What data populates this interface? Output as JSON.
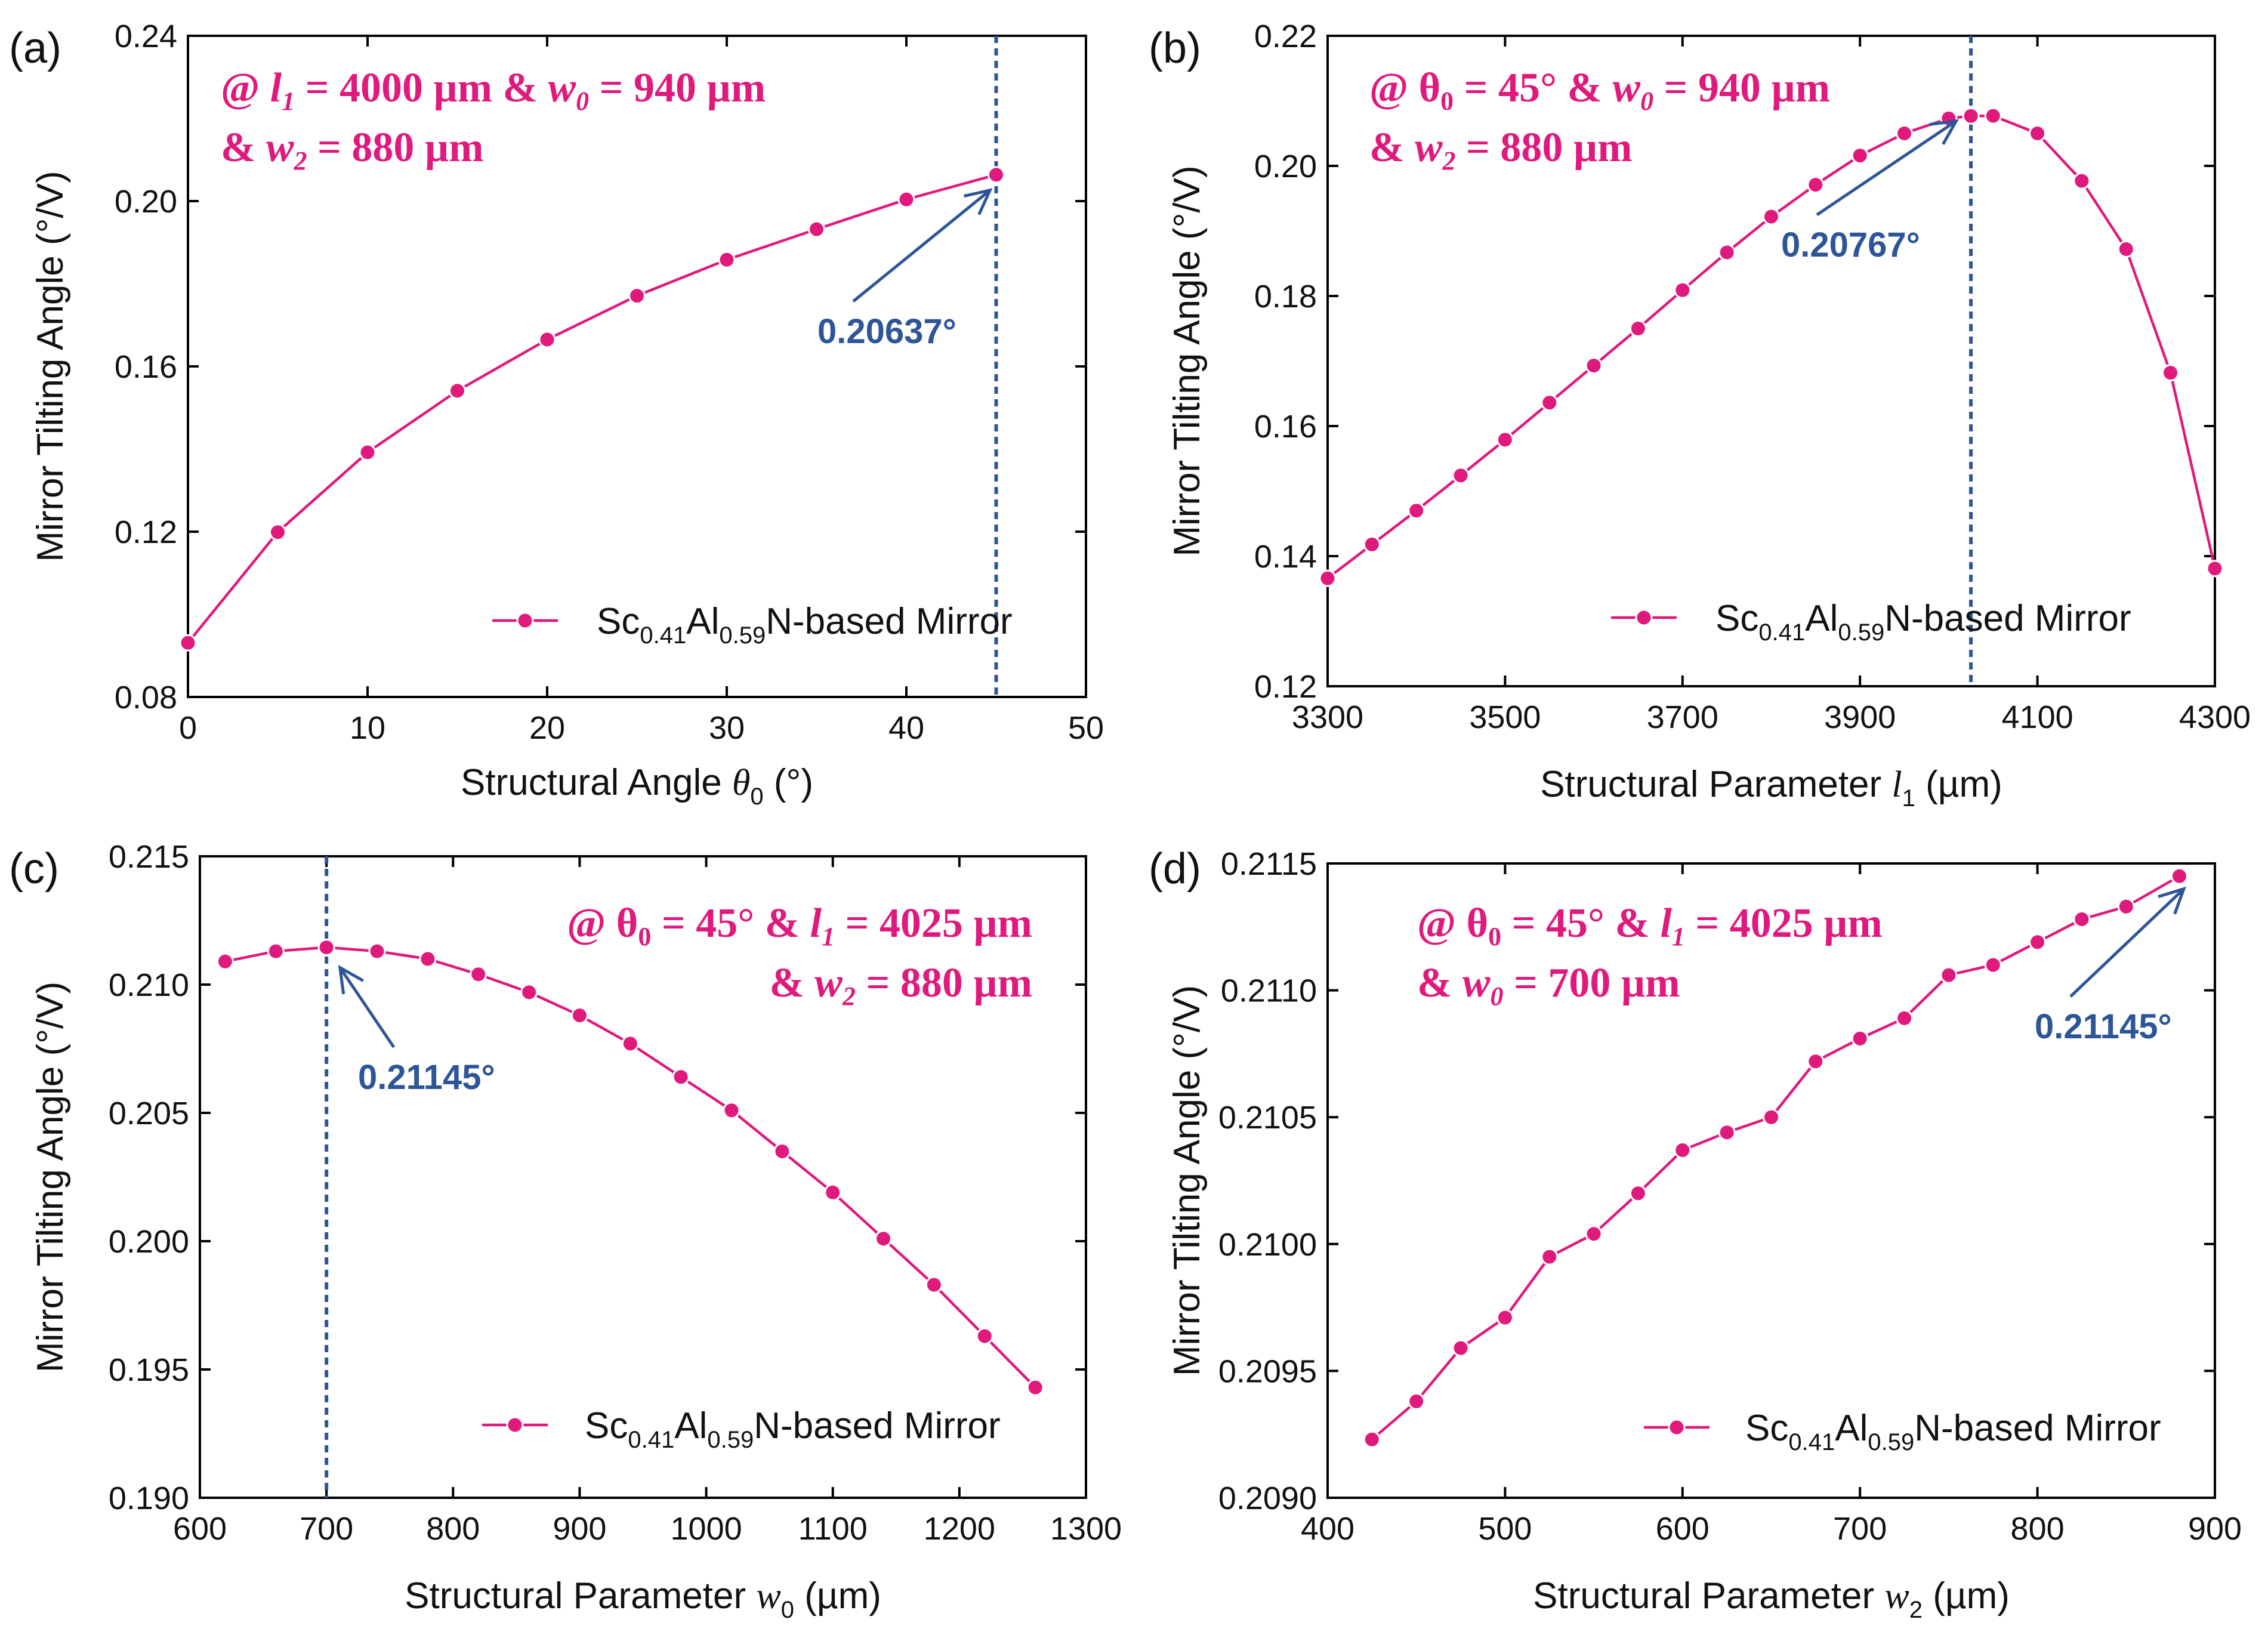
{
  "colors": {
    "series": "#e0197d",
    "annotation": "#2d5597",
    "axis": "#000000"
  },
  "chart_data": [
    {
      "panel": "(a)",
      "type": "line",
      "xlabel_pre": "Structural Angle ",
      "xlabel_sym": "θ",
      "xlabel_sub": "0",
      "xlabel_post": " (°)",
      "ylabel": "Mirror Tilting Angle (°/V)",
      "xlim": [
        0,
        50
      ],
      "ylim": [
        0.08,
        0.24
      ],
      "xticks": [
        "0",
        "10",
        "20",
        "30",
        "40",
        "50"
      ],
      "yticks": [
        "0.08",
        "0.12",
        "0.16",
        "0.20",
        "0.24"
      ],
      "note_line1": [
        "@ ",
        "l",
        "1",
        " = 4000 µm & ",
        "w",
        "0",
        " = 940 µm"
      ],
      "note_line2": [
        "& ",
        "w",
        "2",
        " = 880 µm"
      ],
      "legend": [
        "Sc",
        "0.41",
        "Al",
        "0.59",
        "N-based Mirror"
      ],
      "annotation": "0.20637°",
      "vline_x": 45,
      "x": [
        0,
        5,
        10,
        15,
        20,
        25,
        30,
        35,
        40,
        45
      ],
      "series": [
        {
          "name": "Sc0.41Al0.59N-based Mirror",
          "values": [
            0.0931,
            0.1199,
            0.1392,
            0.1541,
            0.1665,
            0.1771,
            0.1858,
            0.1932,
            0.2004,
            0.20637
          ]
        }
      ]
    },
    {
      "panel": "(b)",
      "type": "line",
      "xlabel_pre": "Structural Parameter ",
      "xlabel_sym": "l",
      "xlabel_sub": "1",
      "xlabel_post": " (µm)",
      "ylabel": "Mirror Tilting Angle (°/V)",
      "xlim": [
        3300,
        4300
      ],
      "ylim": [
        0.12,
        0.22
      ],
      "xticks": [
        "3300",
        "3500",
        "3700",
        "3900",
        "4100",
        "4300"
      ],
      "yticks": [
        "0.12",
        "0.14",
        "0.16",
        "0.18",
        "0.20",
        "0.22"
      ],
      "note_line1": [
        "@ θ",
        "0",
        "",
        " = 45° & ",
        "w",
        "0",
        " = 940 µm"
      ],
      "note_line2": [
        "& ",
        "w",
        "2",
        " = 880 µm"
      ],
      "legend": [
        "Sc",
        "0.41",
        "Al",
        "0.59",
        "N-based Mirror"
      ],
      "annotation": "0.20767°",
      "vline_x": 4025,
      "x": [
        3300,
        3350,
        3400,
        3450,
        3500,
        3550,
        3600,
        3650,
        3700,
        3750,
        3800,
        3850,
        3900,
        3950,
        4000,
        4025,
        4050,
        4100,
        4150,
        4200,
        4250,
        4300
      ],
      "series": [
        {
          "name": "Sc0.41Al0.59N-based Mirror",
          "values": [
            0.1366,
            0.1418,
            0.147,
            0.1524,
            0.1579,
            0.1636,
            0.1693,
            0.175,
            0.1809,
            0.1867,
            0.1922,
            0.1971,
            0.2016,
            0.205,
            0.2073,
            0.20767,
            0.2077,
            0.205,
            0.1977,
            0.1872,
            0.1682,
            0.1381
          ]
        }
      ]
    },
    {
      "panel": "(c)",
      "type": "line",
      "xlabel_pre": "Structural Parameter ",
      "xlabel_sym": "w",
      "xlabel_sub": "0",
      "xlabel_post": " (µm)",
      "ylabel": "Mirror Tilting Angle (°/V)",
      "xlim": [
        600,
        1300
      ],
      "ylim": [
        0.19,
        0.215
      ],
      "xticks": [
        "600",
        "700",
        "800",
        "900",
        "1000",
        "1100",
        "1200",
        "1300"
      ],
      "yticks": [
        "0.190",
        "0.195",
        "0.200",
        "0.205",
        "0.210",
        "0.215"
      ],
      "note_line1": [
        "@ θ",
        "0",
        "",
        " = 45° & ",
        "l",
        "1",
        " = 4025 µm"
      ],
      "note_line2": [
        "& ",
        "w",
        "2",
        " = 880 µm"
      ],
      "legend": [
        "Sc",
        "0.41",
        "Al",
        "0.59",
        "N-based Mirror"
      ],
      "annotation": "0.21145°",
      "vline_x": 700,
      "x": [
        620,
        660,
        700,
        740,
        780,
        820,
        860,
        900,
        940,
        980,
        1020,
        1060,
        1100,
        1140,
        1180,
        1220,
        1260
      ],
      "series": [
        {
          "name": "Sc0.41Al0.59N-based Mirror",
          "values": [
            0.2109,
            0.2113,
            0.21145,
            0.2113,
            0.211,
            0.2104,
            0.2097,
            0.2088,
            0.2077,
            0.2064,
            0.2051,
            0.2035,
            0.2019,
            0.2001,
            0.1983,
            0.1963,
            0.1943
          ]
        }
      ]
    },
    {
      "panel": "(d)",
      "type": "line",
      "xlabel_pre": "Structural Parameter ",
      "xlabel_sym": "w",
      "xlabel_sub": "2",
      "xlabel_post": " (µm)",
      "ylabel": "Mirror Tilting Angle (°/V)",
      "xlim": [
        400,
        900
      ],
      "ylim": [
        0.209,
        0.2115
      ],
      "xticks": [
        "400",
        "500",
        "600",
        "700",
        "800",
        "900"
      ],
      "yticks": [
        "0.2090",
        "0.2095",
        "0.2100",
        "0.2105",
        "0.2110",
        "0.2115"
      ],
      "note_line1": [
        "@ θ",
        "0",
        "",
        " = 45° & ",
        "l",
        "1",
        " = 4025 µm"
      ],
      "note_line2": [
        "& ",
        "w",
        "0",
        " = 700 µm"
      ],
      "legend": [
        "Sc",
        "0.41",
        "Al",
        "0.59",
        "N-based Mirror"
      ],
      "annotation": "0.21145°",
      "vline_x": null,
      "x": [
        425,
        450,
        475,
        500,
        525,
        550,
        575,
        600,
        625,
        650,
        675,
        700,
        725,
        750,
        775,
        800,
        825,
        850,
        880
      ],
      "series": [
        {
          "name": "Sc0.41Al0.59N-based Mirror",
          "values": [
            0.20923,
            0.20938,
            0.20959,
            0.20971,
            0.20995,
            0.21004,
            0.2102,
            0.21037,
            0.21044,
            0.2105,
            0.21072,
            0.21081,
            0.21089,
            0.21106,
            0.2111,
            0.21119,
            0.21128,
            0.21133,
            0.21145
          ]
        }
      ]
    }
  ]
}
